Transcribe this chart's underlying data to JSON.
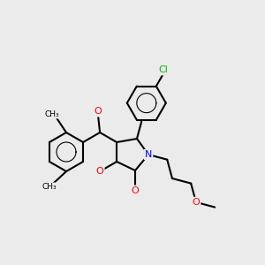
{
  "background_color": "#ebebeb",
  "bond_color": "#000000",
  "atom_colors": {
    "O": "#ff0000",
    "N": "#0000ff",
    "Cl": "#00bb00",
    "C": "#000000"
  },
  "lw": 1.5,
  "font_size": 7.5
}
